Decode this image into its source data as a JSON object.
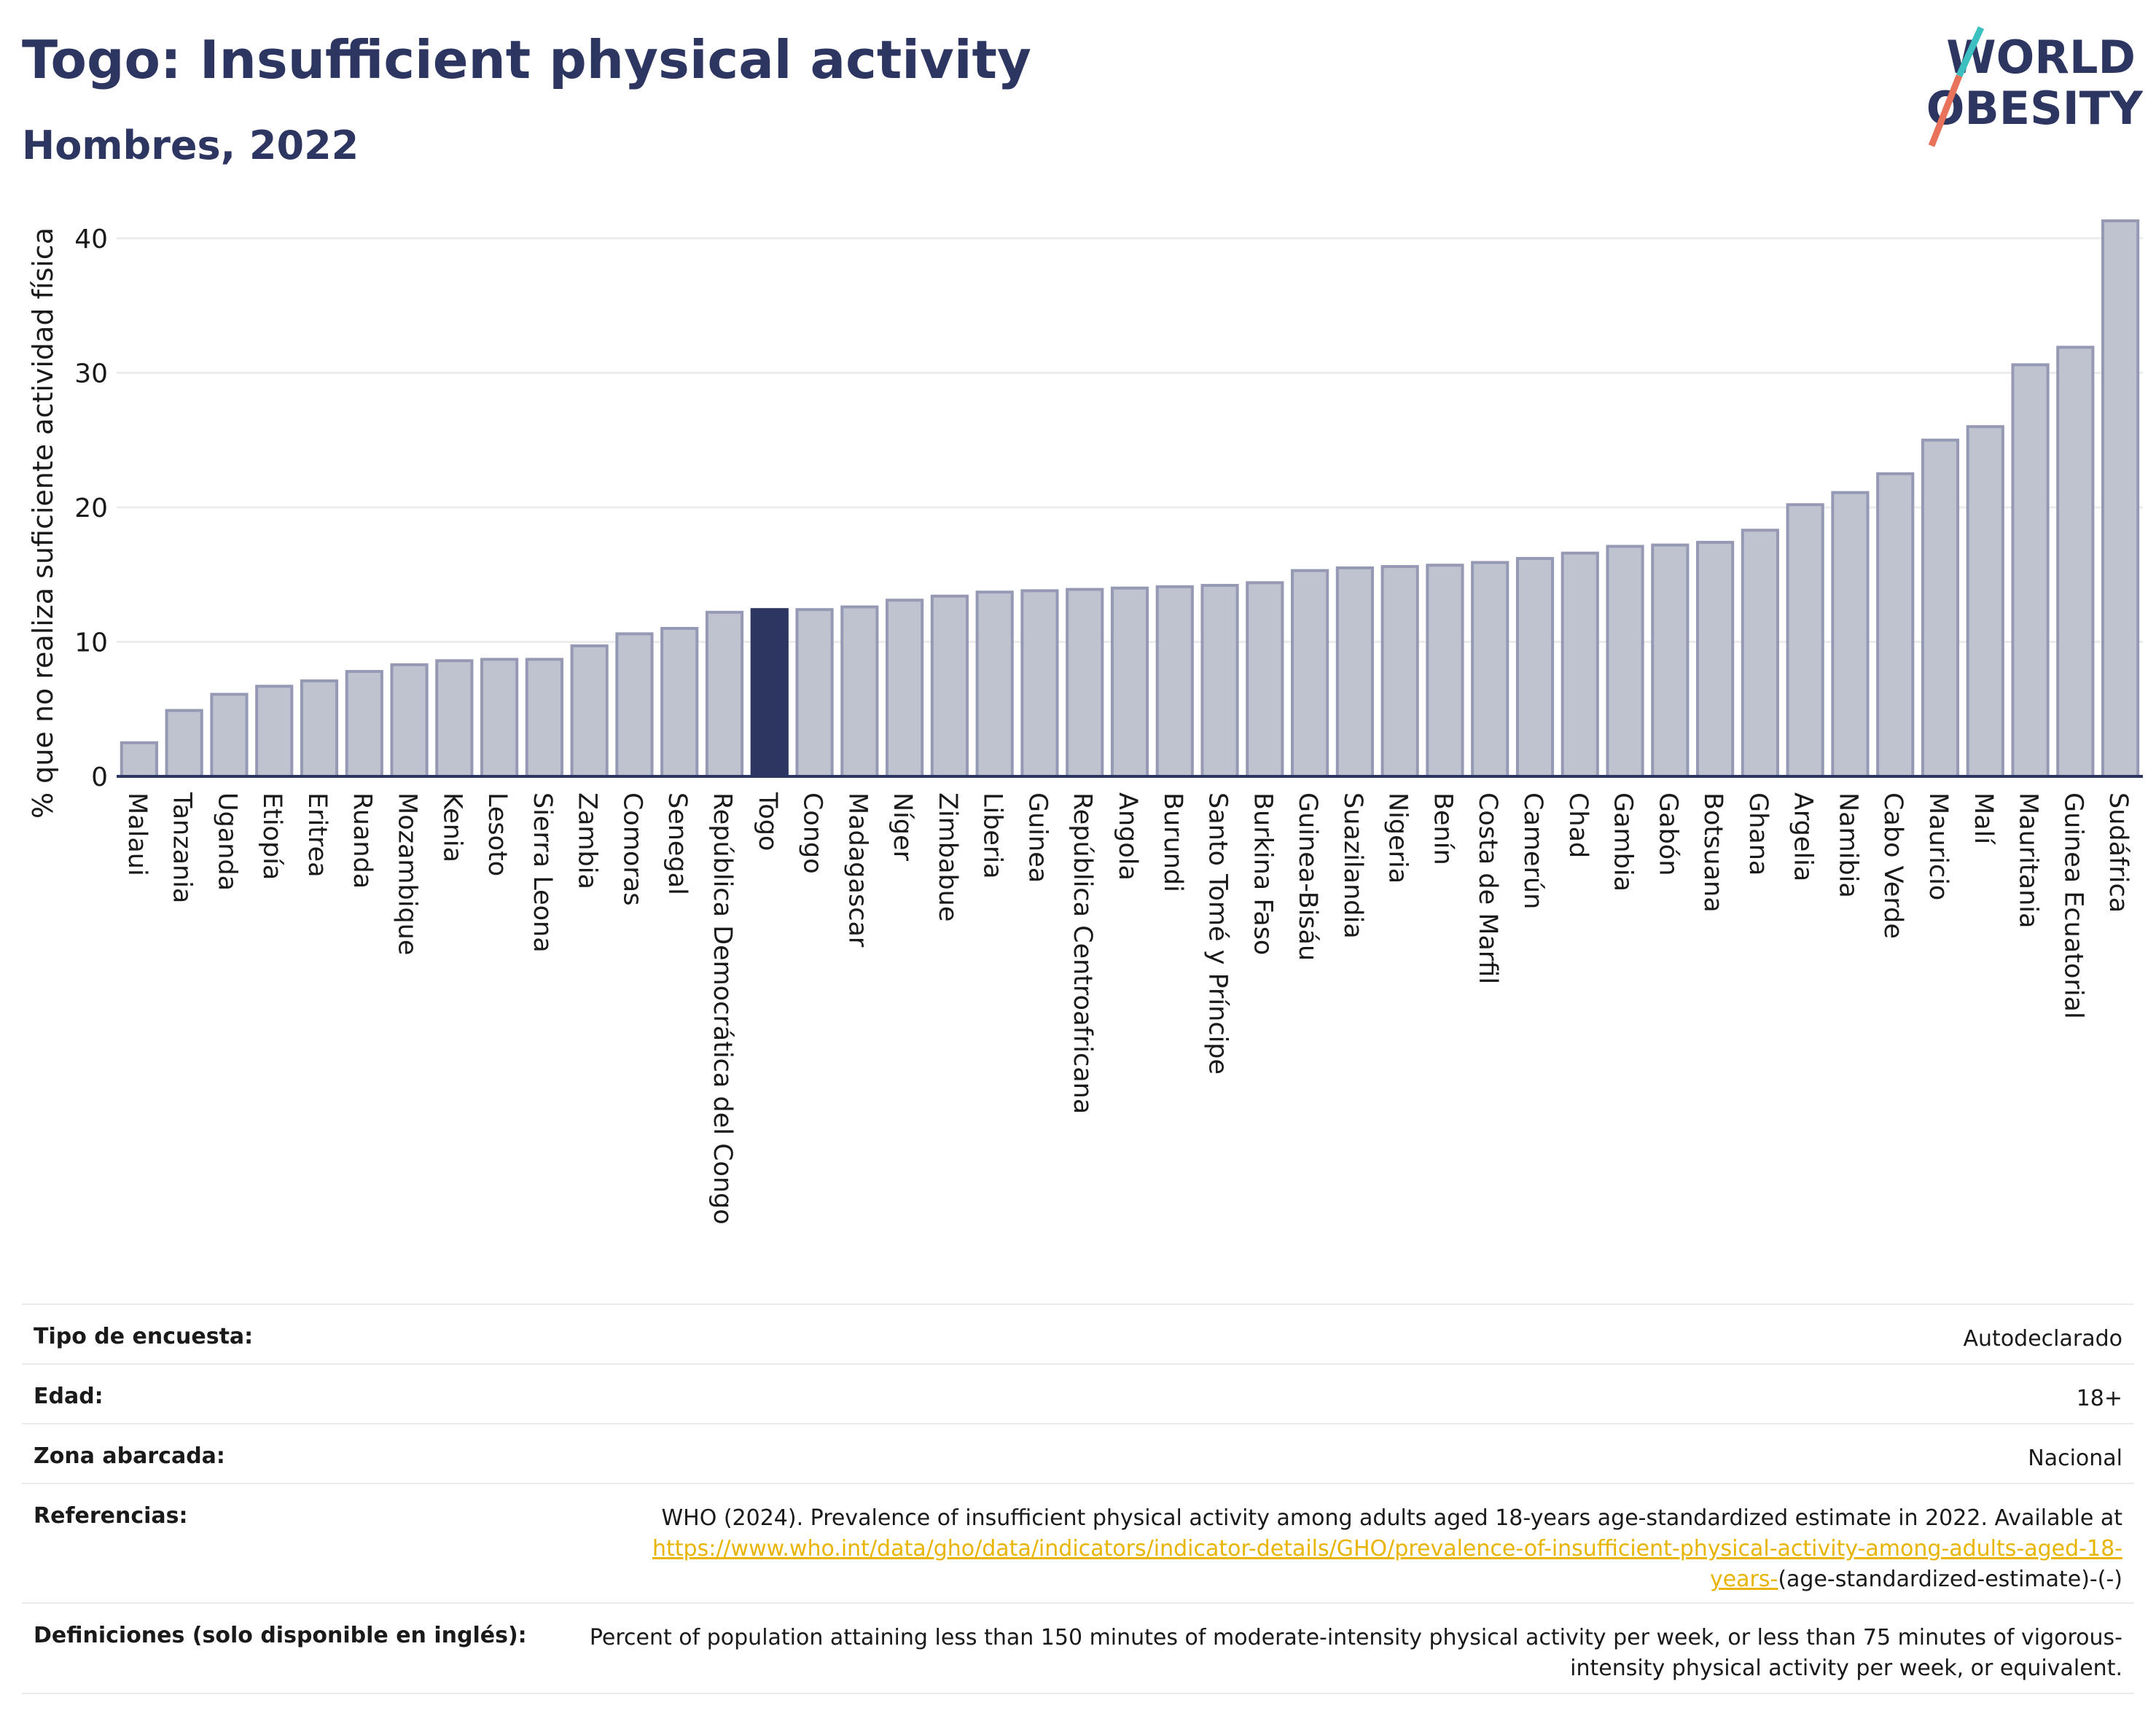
{
  "header": {
    "title": "Togo: Insufficient physical activity",
    "subtitle": "Hombres, 2022",
    "logo_line1": "WORLD",
    "logo_line2": "OBESITY"
  },
  "colors": {
    "title": "#2d3561",
    "bar": "#bfc3d0",
    "bar_border": "#9599b3",
    "highlight": "#2d3561",
    "link": "#e8b400",
    "logo_teal": "#3cbfbf",
    "logo_coral": "#e8735a"
  },
  "chart_data": {
    "type": "bar",
    "ylabel": "% que no realiza suficiente actividad física",
    "ylim": [
      0,
      42
    ],
    "yticks": [
      0,
      10,
      20,
      30,
      40
    ],
    "grid": true,
    "highlight": "Togo",
    "categories": [
      "Malaui",
      "Tanzania",
      "Uganda",
      "Etiopía",
      "Eritrea",
      "Ruanda",
      "Mozambique",
      "Kenia",
      "Lesoto",
      "Sierra Leona",
      "Zambia",
      "Comoras",
      "Senegal",
      "República Democrática del Congo",
      "Togo",
      "Congo",
      "Madagascar",
      "Níger",
      "Zimbabue",
      "Liberia",
      "Guinea",
      "República Centroafricana",
      "Angola",
      "Burundi",
      "Santo Tomé y Príncipe",
      "Burkina Faso",
      "Guinea-Bisáu",
      "Suazilandia",
      "Nigeria",
      "Benín",
      "Costa de Marfil",
      "Camerún",
      "Chad",
      "Gambia",
      "Gabón",
      "Botsuana",
      "Ghana",
      "Argelia",
      "Namibia",
      "Cabo Verde",
      "Mauricio",
      "Malí",
      "Mauritania",
      "Guinea Ecuatorial",
      "Sudáfrica"
    ],
    "values": [
      2.5,
      4.9,
      6.1,
      6.7,
      7.1,
      7.8,
      8.3,
      8.6,
      8.7,
      8.7,
      9.7,
      10.6,
      11.0,
      12.2,
      12.4,
      12.4,
      12.6,
      13.1,
      13.4,
      13.7,
      13.8,
      13.9,
      14.0,
      14.1,
      14.2,
      14.4,
      15.3,
      15.5,
      15.6,
      15.7,
      15.9,
      16.2,
      16.6,
      17.1,
      17.2,
      17.4,
      18.3,
      20.2,
      21.1,
      22.5,
      25.0,
      26.0,
      30.6,
      31.9,
      41.3
    ]
  },
  "info": {
    "survey_label": "Tipo de encuesta:",
    "survey_value": "Autodeclarado",
    "age_label": "Edad:",
    "age_value": "18+",
    "area_label": "Zona abarcada:",
    "area_value": "Nacional",
    "ref_label": "Referencias:",
    "ref_text": "WHO (2024). Prevalence of insufficient physical activity among adults aged 18-years age-standardized estimate in 2022. Available at",
    "ref_link": "https://www.who.int/data/gho/data/indicators/indicator-details/GHO/prevalence-of-insufficient-physical-activity-among-adults-aged-18-years-",
    "ref_tail": "(age-standardized-estimate)-(-)",
    "def_label": "Definiciones (solo disponible en inglés):",
    "def_text": "Percent of population attaining less than 150 minutes of moderate-intensity physical activity per week, or less than 75 minutes of vigorous-intensity physical activity per week, or equivalent."
  }
}
